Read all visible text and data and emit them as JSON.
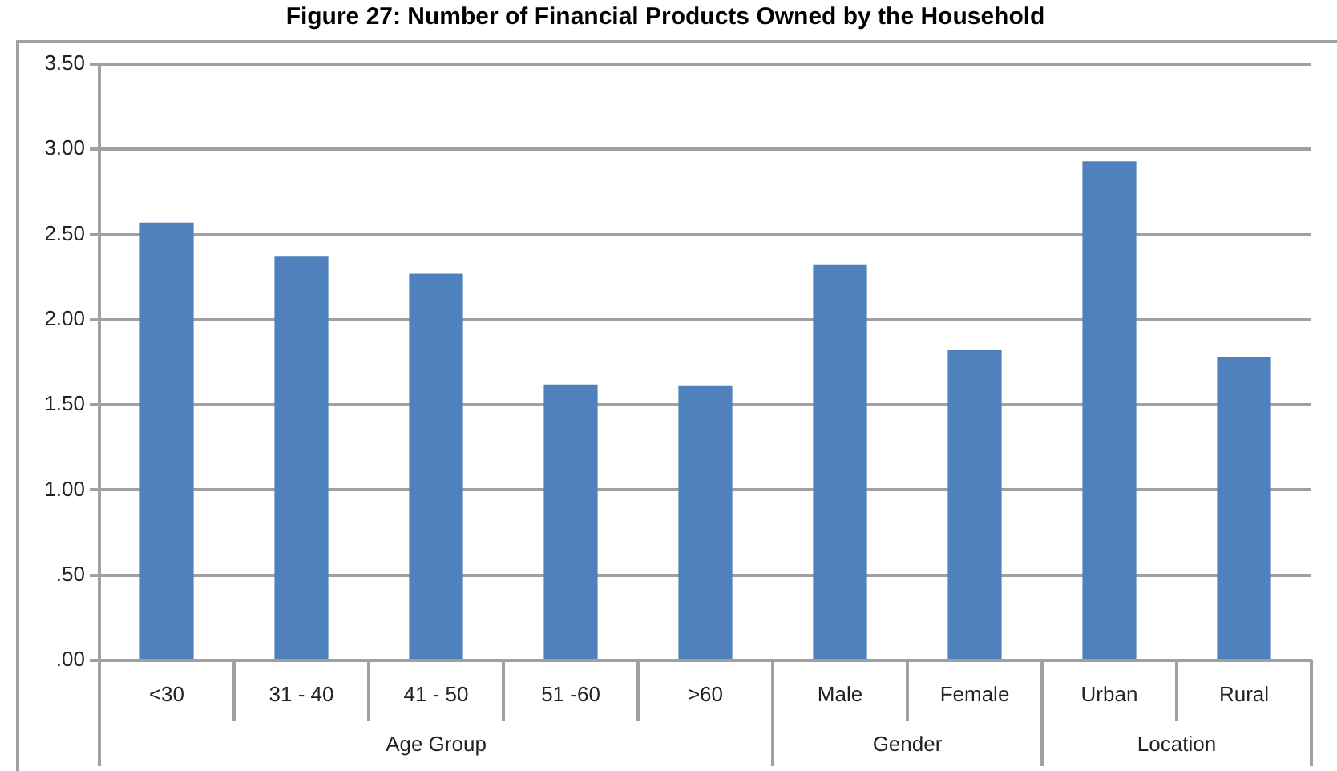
{
  "chart_data": {
    "type": "bar",
    "title": "Figure 27: Number of Financial Products Owned by the Household",
    "categories": [
      "<30",
      "31 - 40",
      "41 - 50",
      "51 -60",
      ">60",
      "Male",
      "Female",
      "Urban",
      "Rural"
    ],
    "values": [
      2.57,
      2.37,
      2.27,
      1.62,
      1.61,
      2.32,
      1.82,
      2.93,
      1.78
    ],
    "color": "#4f81bd",
    "ylim": [
      0,
      3.5
    ],
    "yticks": [
      {
        "value": 0,
        "label": ".00"
      },
      {
        "value": 0.5,
        "label": ".50"
      },
      {
        "value": 1,
        "label": "1.00"
      },
      {
        "value": 1.5,
        "label": "1.50"
      },
      {
        "value": 2,
        "label": "2.00"
      },
      {
        "value": 2.5,
        "label": "2.50"
      },
      {
        "value": 3,
        "label": "3.00"
      },
      {
        "value": 3.5,
        "label": "3.50"
      }
    ],
    "grid": "y",
    "annotations": [
      "Age Group",
      "Gender",
      "Location"
    ]
  }
}
